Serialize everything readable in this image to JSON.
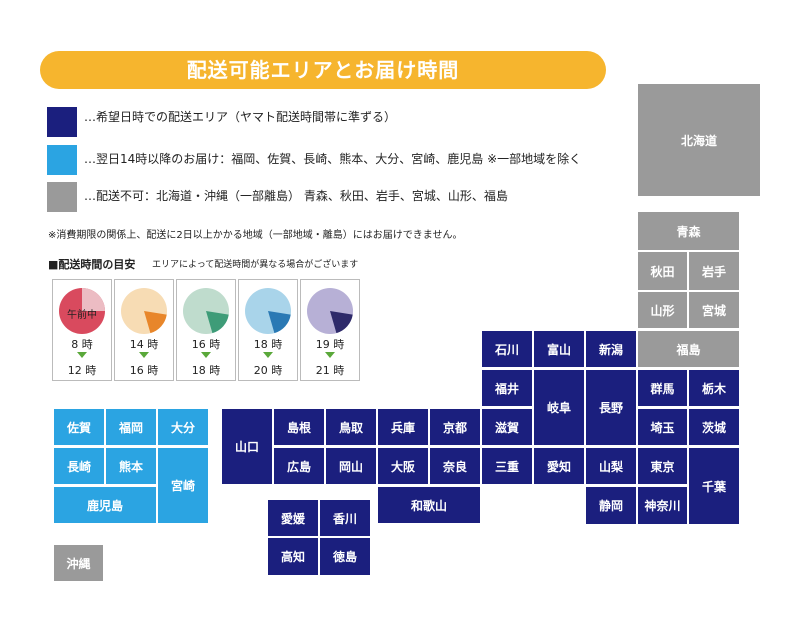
{
  "title": "配送可能エリアとお届け時間",
  "legend": [
    {
      "color": "#1b1f7e",
      "text": "…希望日時での配送エリア（ヤマト配送時間帯に準ずる）"
    },
    {
      "color": "#2ba4e2",
      "text": "…翌日14時以降のお届け：福岡、佐賀、長崎、熊本、大分、宮崎、鹿児島 ※一部地域を除く"
    },
    {
      "color": "#9a9a9a",
      "text": "…配送不可：北海道・沖縄（一部離島） 青森、秋田、岩手、宮城、山形、福島"
    }
  ],
  "note": "※消費期限の関係上、配送に2日以上かかる地域（一部地域・離島）にはお届けできません。",
  "guide": {
    "title": "■配送時間の目安",
    "subtitle": "エリアによって配送時間が異なる場合がございます",
    "slots": [
      {
        "from": "8 時",
        "to": "12 時",
        "label": "午前中",
        "color": "#d94a5e",
        "light": "#ecbcc3",
        "fraction": 0.75
      },
      {
        "from": "14 時",
        "to": "16 時",
        "label": "",
        "color": "#e8862a",
        "light": "#f7dcb4",
        "fraction": 0.18
      },
      {
        "from": "16 時",
        "to": "18 時",
        "label": "",
        "color": "#3e9c78",
        "light": "#bfdccd",
        "fraction": 0.18
      },
      {
        "from": "18 時",
        "to": "20 時",
        "label": "",
        "color": "#2a79b4",
        "light": "#a9d4ea",
        "fraction": 0.18
      },
      {
        "from": "19 時",
        "to": "21 時",
        "label": "",
        "color": "#2e2a6a",
        "light": "#b7b0d6",
        "fraction": 0.18
      }
    ]
  },
  "prefectures": {
    "hokkaido": "北海道",
    "aomori": "青森",
    "akita": "秋田",
    "iwate": "岩手",
    "yamagata": "山形",
    "miyagi": "宮城",
    "fukushima": "福島",
    "gunma": "群馬",
    "tochigi": "栃木",
    "saitama": "埼玉",
    "ibaraki": "茨城",
    "tokyo": "東京",
    "chiba": "千葉",
    "kanagawa": "神奈川",
    "shizuoka": "静岡",
    "yamanashi": "山梨",
    "nagano": "長野",
    "niigata": "新潟",
    "toyama": "富山",
    "ishikawa": "石川",
    "fukui": "福井",
    "gifu": "岐阜",
    "shiga": "滋賀",
    "aichi": "愛知",
    "mie": "三重",
    "kyoto": "京都",
    "nara": "奈良",
    "osaka": "大阪",
    "hyogo": "兵庫",
    "wakayama": "和歌山",
    "tottori": "鳥取",
    "shimane": "島根",
    "okayama": "岡山",
    "hiroshima": "広島",
    "yamaguchi": "山口",
    "kagawa": "香川",
    "ehime": "愛媛",
    "tokushima": "徳島",
    "kochi": "高知",
    "fukuoka": "福岡",
    "saga": "佐賀",
    "nagasaki": "長崎",
    "kumamoto": "熊本",
    "oita": "大分",
    "miyazaki": "宮崎",
    "kagoshima": "鹿児島",
    "okinawa": "沖縄"
  }
}
